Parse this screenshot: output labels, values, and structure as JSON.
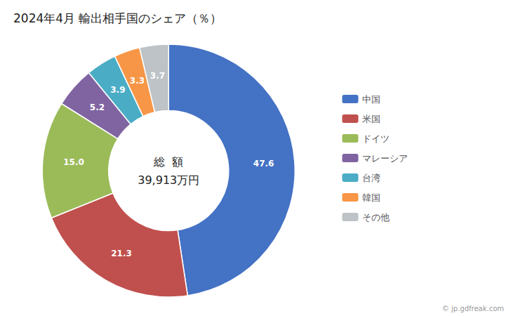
{
  "chart_data": {
    "type": "pie",
    "title": "2024年4月 輸出相手国のシェア（％）",
    "categories": [
      "中国",
      "米国",
      "ドイツ",
      "マレーシア",
      "台湾",
      "韓国",
      "その他"
    ],
    "values": [
      47.6,
      21.3,
      15.0,
      5.2,
      3.9,
      3.3,
      3.7
    ],
    "value_labels": [
      "47.6",
      "21.3",
      "15.0",
      "5.2",
      "3.9",
      "3.3",
      "3.7"
    ],
    "colors": [
      "#4472C4",
      "#C0504D",
      "#9BBB59",
      "#8064A2",
      "#4BACC6",
      "#F79646",
      "#BDC3C7"
    ],
    "data_labels": true,
    "legend": "right",
    "annotations": [
      "総  額",
      "39,913万円"
    ],
    "watermark": "© jp.gdfreak.com"
  }
}
